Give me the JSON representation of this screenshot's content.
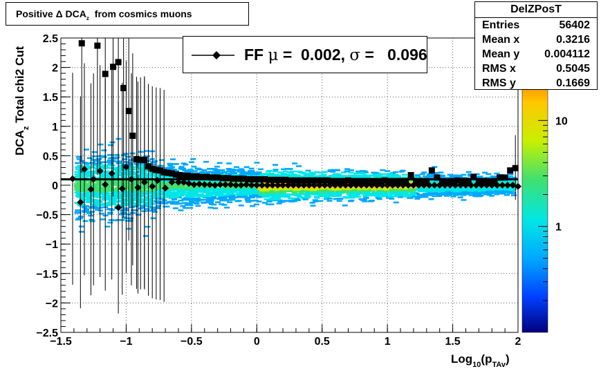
{
  "title": {
    "prefix": "Positive",
    "delta": "Δ",
    "main": "DCA",
    "sub": "z",
    "suffix": "from cosmics muons"
  },
  "stats": {
    "name": "DelZPosT",
    "rows": [
      {
        "label": "Entries",
        "value": "56402"
      },
      {
        "label": "Mean x",
        "value": "0.3216"
      },
      {
        "label": "Mean y",
        "value": "0.004112"
      },
      {
        "label": "RMS x",
        "value": "0.5045"
      },
      {
        "label": "RMS y",
        "value": "0.1669"
      }
    ]
  },
  "fit_legend": {
    "label": "FF",
    "mu_symbol": "μ",
    "mu_value": "=  0.002,",
    "sigma_symbol": "σ",
    "sigma_value": "=   0.096"
  },
  "colors": {
    "markers": "#000000",
    "palette": "rainbow"
  },
  "chart_data": {
    "type": "heatmap",
    "xlabel": {
      "main": "Log",
      "sub10": "10",
      "p": "(p",
      "sub": "TAv",
      "close": ")"
    },
    "ylabel": {
      "main": "DCA",
      "sub": "z",
      "suffix": "Total chi2 Cut"
    },
    "xlim": [
      -1.5,
      2.0
    ],
    "ylim": [
      -2.5,
      2.5
    ],
    "xticks": [
      -1.5,
      -1,
      -0.5,
      0,
      0.5,
      1,
      1.5,
      2
    ],
    "xtick_labels": [
      "−1.5",
      "−1",
      "−0.5",
      "0",
      "0.5",
      "1",
      "1.5",
      "2"
    ],
    "yticks": [
      -2.5,
      -2,
      -1.5,
      -1,
      -0.5,
      0,
      0.5,
      1,
      1.5,
      2,
      2.5
    ],
    "ytick_labels": [
      "−2.5",
      "−2",
      "−1.5",
      "−1",
      "−0.5",
      "0",
      "0.5",
      "1",
      "1.5",
      "2",
      "2.5"
    ],
    "grid": true,
    "colorbar": {
      "scale": "log",
      "range": [
        0.1,
        60
      ],
      "ticks": [
        1,
        10
      ],
      "tick_labels": [
        "1",
        "10"
      ]
    },
    "fit_line_y": 0.1,
    "series": [
      {
        "name": "width",
        "marker": "square",
        "x": [
          -1.34,
          -1.22,
          -1.16,
          -1.1,
          -1.06,
          -1.02,
          -0.98,
          -0.95,
          -0.92,
          -0.89,
          -0.86,
          -0.83,
          -0.8,
          -0.77,
          -0.74,
          -0.71,
          -0.68,
          -0.65,
          -0.62,
          -0.59,
          -0.56,
          -0.53,
          -0.5,
          -0.46,
          -0.42,
          -0.38,
          -0.34,
          -0.3,
          -0.26,
          -0.22,
          -0.18,
          -0.14,
          -0.1,
          -0.06,
          -0.02,
          0.02,
          0.06,
          0.1,
          0.14,
          0.18,
          0.22,
          0.26,
          0.3,
          0.34,
          0.38,
          0.42,
          0.46,
          0.5,
          0.54,
          0.58,
          0.62,
          0.66,
          0.7,
          0.74,
          0.78,
          0.82,
          0.86,
          0.9,
          0.94,
          0.98,
          1.02,
          1.06,
          1.1,
          1.14,
          1.18,
          1.22,
          1.26,
          1.3,
          1.34,
          1.38,
          1.42,
          1.46,
          1.5,
          1.54,
          1.58,
          1.62,
          1.66,
          1.7,
          1.74,
          1.78,
          1.82,
          1.86,
          1.9,
          1.94,
          1.98
        ],
        "y": [
          2.41,
          2.37,
          1.89,
          2.01,
          2.09,
          1.65,
          1.26,
          0.84,
          0.44,
          0.43,
          0.43,
          0.32,
          0.28,
          0.26,
          0.25,
          0.22,
          0.21,
          0.2,
          0.18,
          0.17,
          0.16,
          0.16,
          0.15,
          0.15,
          0.14,
          0.14,
          0.13,
          0.13,
          0.12,
          0.12,
          0.11,
          0.11,
          0.11,
          0.1,
          0.1,
          0.1,
          0.1,
          0.09,
          0.09,
          0.09,
          0.09,
          0.08,
          0.08,
          0.08,
          0.08,
          0.08,
          0.08,
          0.08,
          0.08,
          0.07,
          0.07,
          0.07,
          0.08,
          0.07,
          0.07,
          0.07,
          0.07,
          0.07,
          0.07,
          0.08,
          0.07,
          0.07,
          0.07,
          0.07,
          0.17,
          0.07,
          0.07,
          0.07,
          0.25,
          0.13,
          0.07,
          0.06,
          0.07,
          0.08,
          0.07,
          0.07,
          0.14,
          0.07,
          0.07,
          0.06,
          0.07,
          0.13,
          0.13,
          0.25,
          0.29
        ]
      },
      {
        "name": "mean",
        "marker": "diamond",
        "x": [
          -1.41,
          -1.35,
          -1.32,
          -1.27,
          -1.25,
          -1.2,
          -1.16,
          -1.11,
          -1.06,
          -1.03,
          -1.0,
          -0.96,
          -0.91,
          -0.86,
          -0.8,
          -0.76,
          -0.7,
          -0.65,
          -0.6,
          -0.56,
          -0.52,
          -0.48,
          -0.44,
          -0.4,
          -0.36,
          -0.32,
          -0.28,
          -0.24,
          -0.2,
          -0.16,
          -0.12,
          -0.08,
          -0.04,
          0.0,
          0.04,
          0.08,
          0.12,
          0.16,
          0.2,
          0.24,
          0.28,
          0.32,
          0.36,
          0.4,
          0.44,
          0.48,
          0.52,
          0.56,
          0.6,
          0.64,
          0.68,
          0.72,
          0.76,
          0.8,
          0.84,
          0.88,
          0.92,
          0.96,
          1.0,
          1.04,
          1.08,
          1.12,
          1.16,
          1.2,
          1.24,
          1.28,
          1.32,
          1.36,
          1.4,
          1.44,
          1.48,
          1.52,
          1.56,
          1.6,
          1.64,
          1.68,
          1.72,
          1.76,
          1.8,
          1.84,
          1.88,
          1.92,
          1.96,
          2.0
        ],
        "y": [
          0.11,
          -0.29,
          0.27,
          -0.07,
          0.1,
          0.24,
          0.01,
          0.2,
          -0.38,
          -0.06,
          0.31,
          0.1,
          -0.04,
          0.05,
          -0.02,
          0.08,
          -0.05,
          0.05,
          0.05,
          0.05,
          0.03,
          0.01,
          0.02,
          0.01,
          0.01,
          0.0,
          0.01,
          0.01,
          0.01,
          0.0,
          0.0,
          0.01,
          0.0,
          0.0,
          0.0,
          0.0,
          0.0,
          0.0,
          0.0,
          0.0,
          0.0,
          0.0,
          0.0,
          0.0,
          0.0,
          0.0,
          0.0,
          0.0,
          0.0,
          0.0,
          0.0,
          0.0,
          0.0,
          0.0,
          0.0,
          0.0,
          0.0,
          0.0,
          0.0,
          0.0,
          0.0,
          0.0,
          0.0,
          0.0,
          0.0,
          0.0,
          0.0,
          0.0,
          0.0,
          0.0,
          0.0,
          0.0,
          0.0,
          0.0,
          0.0,
          0.0,
          0.0,
          0.0,
          0.0,
          0.0,
          0.0,
          0.0,
          0.0,
          -0.02
        ]
      }
    ]
  }
}
